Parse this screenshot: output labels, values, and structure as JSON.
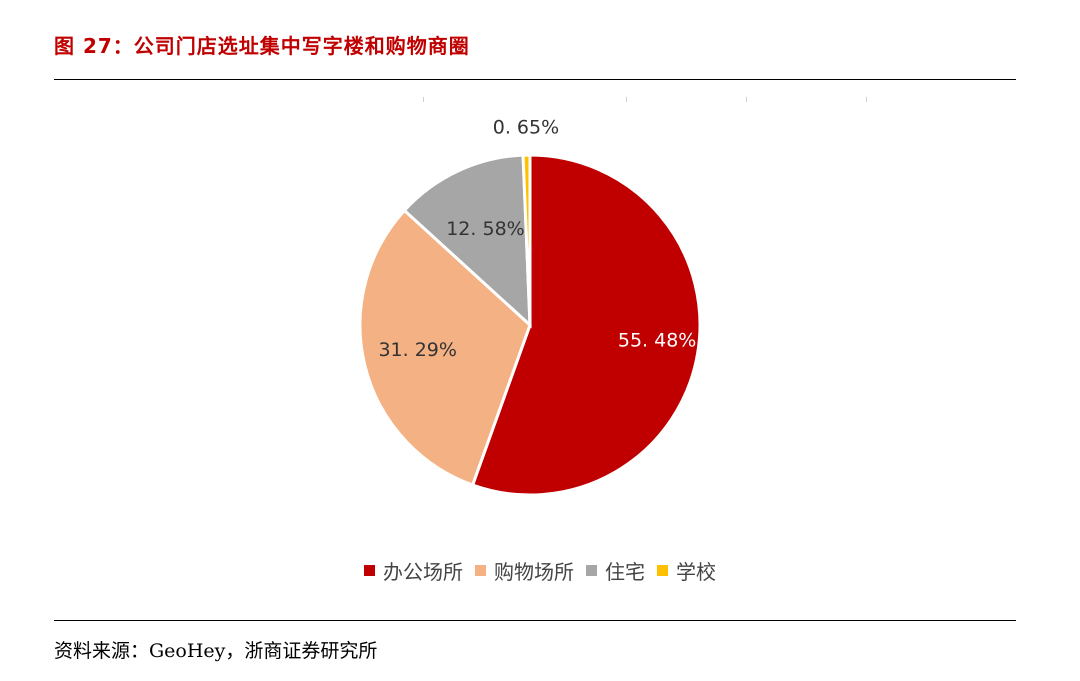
{
  "figure_title": "图 27：公司门店选址集中写字楼和购物商圈",
  "source": "资料来源：GeoHey，浙商证券研究所",
  "chart_data": {
    "type": "pie",
    "title": "",
    "slices": [
      {
        "name": "办公场所",
        "value": 55.48,
        "label": "55. 48%",
        "color": "#c00000",
        "label_color": "#ffffff"
      },
      {
        "name": "购物场所",
        "value": 31.29,
        "label": "31. 29%",
        "color": "#f4b183",
        "label_color": "#333333"
      },
      {
        "name": "住宅",
        "value": 12.58,
        "label": "12. 58%",
        "color": "#a6a6a6",
        "label_color": "#333333"
      },
      {
        "name": "学校",
        "value": 0.65,
        "label": "0. 65%",
        "color": "#ffc000",
        "label_color": "#333333"
      }
    ],
    "start_angle_deg": 0,
    "direction": "clockwise",
    "legend_position": "bottom"
  }
}
